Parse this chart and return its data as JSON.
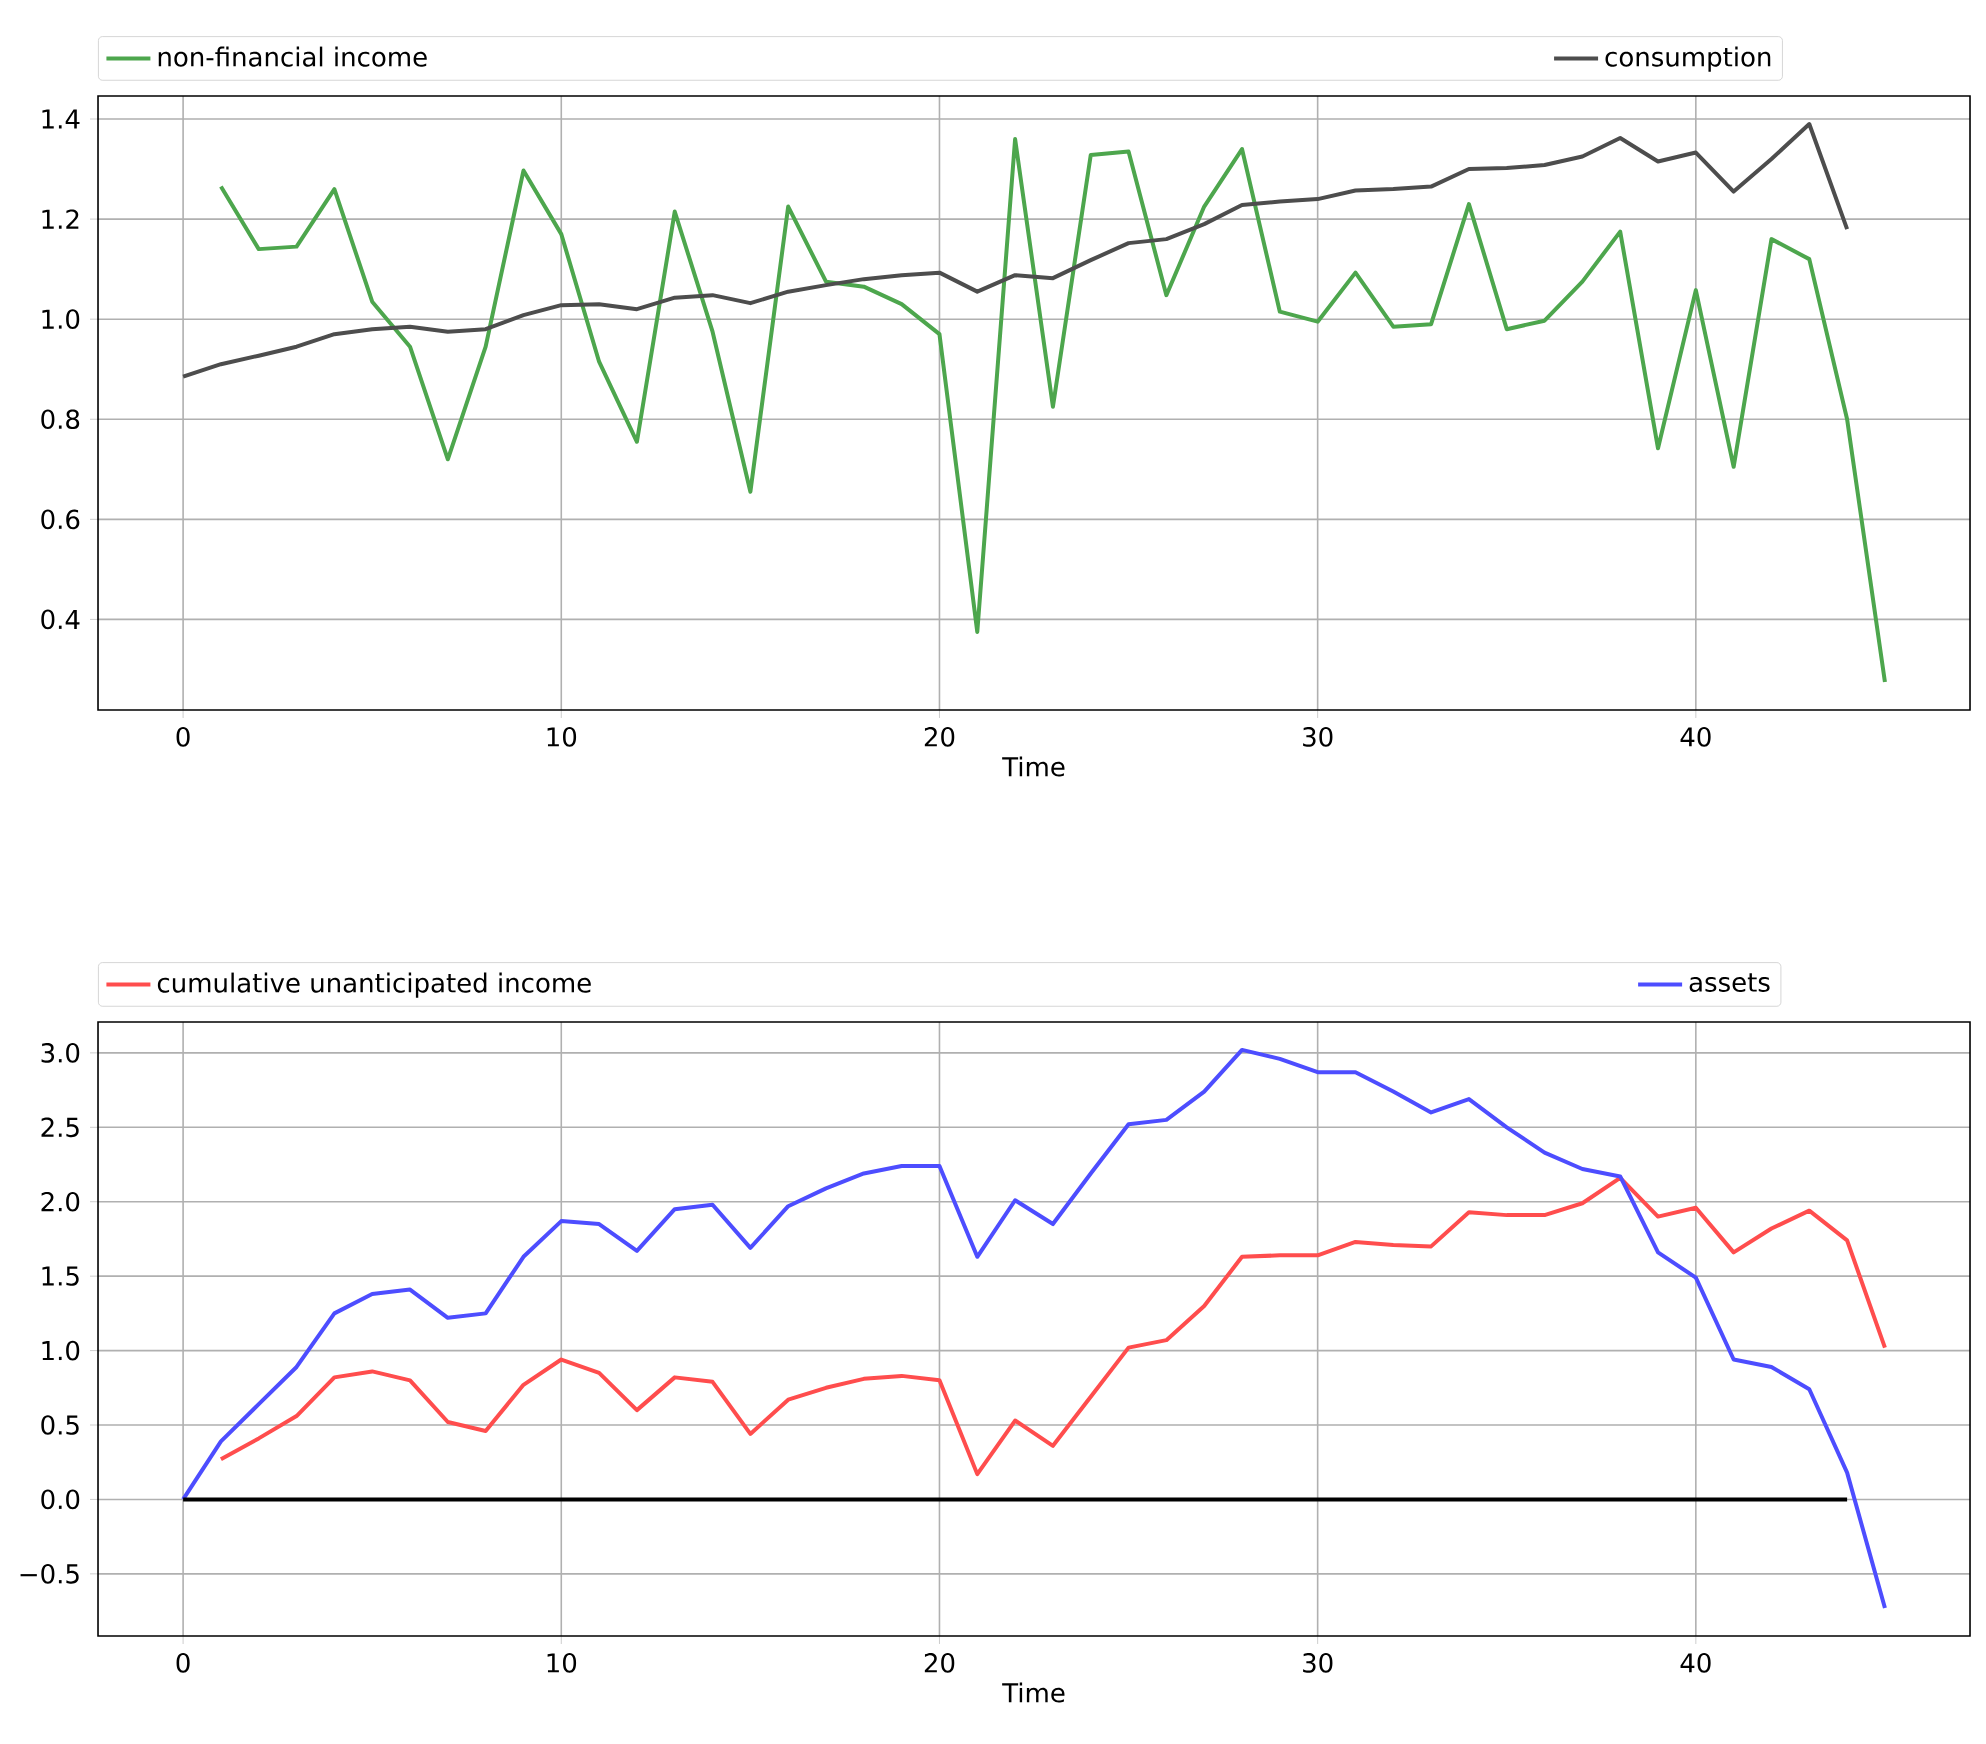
{
  "chart_data": [
    {
      "type": "line",
      "xlabel": "Time",
      "x": [
        0,
        1,
        2,
        3,
        4,
        5,
        6,
        7,
        8,
        9,
        10,
        11,
        12,
        13,
        14,
        15,
        16,
        17,
        18,
        19,
        20,
        21,
        22,
        23,
        24,
        25,
        26,
        27,
        28,
        29,
        30,
        31,
        32,
        33,
        34,
        35,
        36,
        37,
        38,
        39,
        40,
        41,
        42,
        43,
        44,
        45
      ],
      "xlim": [
        -2.25,
        47.25
      ],
      "xticks": [
        0,
        10,
        20,
        30,
        40
      ],
      "ylim": [
        0.219,
        1.446
      ],
      "yticks": [
        0.4,
        0.6,
        0.8,
        {
          "value": 1,
          "label": "1.0"
        },
        1.2,
        1.4
      ],
      "grid": true,
      "legend": "top",
      "line_style": "solid",
      "series": [
        {
          "name": "non-financial income",
          "color": "#4da64d",
          "values": [
            null,
            1.265,
            1.14,
            1.145,
            1.26,
            1.035,
            0.945,
            0.72,
            0.945,
            1.297,
            1.17,
            0.915,
            0.755,
            1.215,
            0.975,
            0.655,
            1.225,
            1.075,
            1.065,
            1.03,
            0.97,
            0.375,
            1.36,
            0.825,
            1.328,
            1.335,
            1.048,
            1.225,
            1.34,
            1.015,
            0.995,
            1.093,
            0.985,
            0.99,
            1.23,
            0.98,
            0.997,
            1.075,
            1.175,
            0.742,
            1.058,
            0.705,
            1.16,
            1.12,
            0.8,
            0.275
          ]
        },
        {
          "name": "consumption",
          "color": "#4d4d4d",
          "values": [
            0.885,
            0.91,
            0.927,
            0.945,
            0.97,
            0.98,
            0.985,
            0.975,
            0.98,
            1.008,
            1.028,
            1.03,
            1.02,
            1.043,
            1.048,
            1.032,
            1.055,
            1.068,
            1.08,
            1.088,
            1.093,
            1.055,
            1.088,
            1.082,
            1.118,
            1.152,
            1.16,
            1.19,
            1.228,
            1.235,
            1.24,
            1.257,
            1.26,
            1.265,
            1.3,
            1.302,
            1.308,
            1.325,
            1.362,
            1.315,
            1.333,
            1.255,
            1.32,
            1.39,
            1.18,
            null
          ]
        }
      ]
    },
    {
      "type": "line",
      "xlabel": "Time",
      "x": [
        0,
        1,
        2,
        3,
        4,
        5,
        6,
        7,
        8,
        9,
        10,
        11,
        12,
        13,
        14,
        15,
        16,
        17,
        18,
        19,
        20,
        21,
        22,
        23,
        24,
        25,
        26,
        27,
        28,
        29,
        30,
        31,
        32,
        33,
        34,
        35,
        36,
        37,
        38,
        39,
        40,
        41,
        42,
        43,
        44,
        45
      ],
      "xlim": [
        -2.25,
        47.25
      ],
      "xticks": [
        0,
        10,
        20,
        30,
        40
      ],
      "ylim": [
        -0.9175,
        3.2075
      ],
      "yticks": [
        {
          "value": -0.5,
          "label": "−0.5"
        },
        {
          "value": 0,
          "label": "0.0"
        },
        0.5,
        {
          "value": 1,
          "label": "1.0"
        },
        1.5,
        {
          "value": 2,
          "label": "2.0"
        },
        2.5,
        {
          "value": 3,
          "label": "3.0"
        }
      ],
      "grid": true,
      "legend": "top",
      "line_style": "solid",
      "series": [
        {
          "name": "cumulative unanticipated income",
          "color": "#ff4d4d",
          "values": [
            null,
            0.27,
            0.41,
            0.56,
            0.82,
            0.86,
            0.8,
            0.52,
            0.46,
            0.77,
            0.94,
            0.85,
            0.6,
            0.82,
            0.79,
            0.44,
            0.67,
            0.75,
            0.81,
            0.83,
            0.8,
            0.17,
            0.53,
            0.36,
            0.69,
            1.02,
            1.07,
            1.3,
            1.63,
            1.64,
            1.64,
            1.73,
            1.71,
            1.7,
            1.93,
            1.91,
            1.91,
            1.99,
            2.16,
            1.9,
            1.96,
            1.66,
            1.82,
            1.94,
            1.74,
            1.02
          ]
        },
        {
          "name": "assets",
          "color": "#4d4dff",
          "values": [
            0,
            0.39,
            0.64,
            0.89,
            1.25,
            1.38,
            1.41,
            1.22,
            1.25,
            1.63,
            1.87,
            1.85,
            1.67,
            1.95,
            1.98,
            1.69,
            1.97,
            2.09,
            2.19,
            2.24,
            2.24,
            1.63,
            2.01,
            1.85,
            2.19,
            2.52,
            2.55,
            2.74,
            3.02,
            2.96,
            2.87,
            2.87,
            2.74,
            2.6,
            2.69,
            2.5,
            2.33,
            2.22,
            2.17,
            1.66,
            1.49,
            0.94,
            0.89,
            0.74,
            0.18,
            -0.73
          ]
        },
        {
          "color": "#000000",
          "x": [
            0,
            44
          ],
          "values": [
            0,
            0
          ]
        }
      ]
    }
  ]
}
